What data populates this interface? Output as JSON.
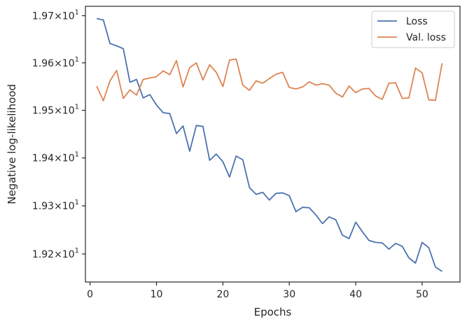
{
  "chart_data": {
    "type": "line",
    "title": "",
    "xlabel": "Epochs",
    "ylabel": "Negative log-likelihood",
    "xlim": [
      -0.7,
      55.7
    ],
    "ylim": [
      19.142,
      19.72
    ],
    "yscale": "log",
    "grid": false,
    "legend_position": "top-right",
    "x_ticks": [
      0,
      10,
      20,
      30,
      40,
      50
    ],
    "x_tick_labels": [
      "0",
      "10",
      "20",
      "30",
      "40",
      "50"
    ],
    "y_ticks": [
      19.2,
      19.3,
      19.4,
      19.5,
      19.6,
      19.7
    ],
    "y_tick_mantissas": [
      "1.92",
      "1.93",
      "1.94",
      "1.95",
      "1.96",
      "1.97"
    ],
    "y_tick_times": "×",
    "y_tick_base": "10",
    "y_tick_exponent": "1",
    "x": [
      1,
      2,
      3,
      4,
      5,
      6,
      7,
      8,
      9,
      10,
      11,
      12,
      13,
      14,
      15,
      16,
      17,
      18,
      19,
      20,
      21,
      22,
      23,
      24,
      25,
      26,
      27,
      28,
      29,
      30,
      31,
      32,
      33,
      34,
      35,
      36,
      37,
      38,
      39,
      40,
      41,
      42,
      43,
      44,
      45,
      46,
      47,
      48,
      49,
      50,
      51,
      52,
      53
    ],
    "series": [
      {
        "name": "Loss",
        "color": "#4c72b0",
        "values": [
          19.694,
          19.691,
          19.641,
          19.636,
          19.63,
          19.559,
          19.565,
          19.526,
          19.533,
          19.511,
          19.495,
          19.493,
          19.451,
          19.467,
          19.414,
          19.468,
          19.466,
          19.395,
          19.408,
          19.392,
          19.36,
          19.404,
          19.396,
          19.338,
          19.324,
          19.328,
          19.312,
          19.326,
          19.327,
          19.321,
          19.288,
          19.297,
          19.296,
          19.281,
          19.263,
          19.277,
          19.271,
          19.239,
          19.232,
          19.266,
          19.246,
          19.228,
          19.224,
          19.223,
          19.21,
          19.222,
          19.216,
          19.192,
          19.181,
          19.224,
          19.213,
          19.173,
          19.164
        ]
      },
      {
        "name": "Val. loss",
        "color": "#dd8452",
        "values": [
          19.551,
          19.52,
          19.562,
          19.584,
          19.525,
          19.543,
          19.532,
          19.565,
          19.568,
          19.571,
          19.583,
          19.575,
          19.605,
          19.549,
          19.59,
          19.6,
          19.564,
          19.596,
          19.58,
          19.55,
          19.606,
          19.608,
          19.553,
          19.542,
          19.562,
          19.557,
          19.567,
          19.576,
          19.58,
          19.548,
          19.545,
          19.549,
          19.56,
          19.553,
          19.556,
          19.553,
          19.536,
          19.528,
          19.551,
          19.537,
          19.545,
          19.546,
          19.53,
          19.523,
          19.557,
          19.558,
          19.525,
          19.526,
          19.589,
          19.579,
          19.522,
          19.521,
          19.599
        ]
      }
    ]
  }
}
